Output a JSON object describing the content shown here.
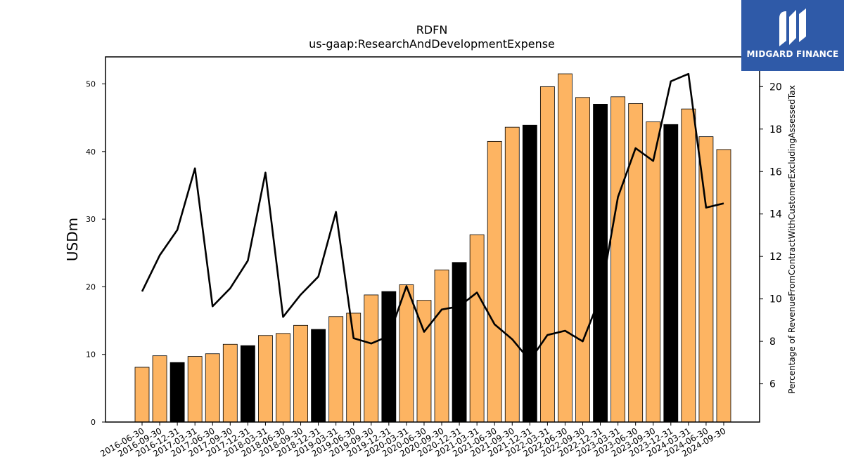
{
  "logo": {
    "text": "MIDGARD FINANCE"
  },
  "chart_data": {
    "type": "bar",
    "title": "RDFN",
    "subtitle": "us-gaap:ResearchAndDevelopmentExpense",
    "ylabel": "USDm",
    "y2label": "Percentage of RevenueFromContractWithCustomerExcludingAssessedTax",
    "ylim": [
      0,
      54
    ],
    "y2lim": [
      4.2,
      21.4
    ],
    "yticks": [
      0,
      10,
      20,
      30,
      40,
      50
    ],
    "y2ticks": [
      6,
      8,
      10,
      12,
      14,
      16,
      18,
      20
    ],
    "categories": [
      "2016-06-30",
      "2016-09-30",
      "2016-12-31",
      "2017-03-31",
      "2017-06-30",
      "2017-09-30",
      "2017-12-31",
      "2018-03-31",
      "2018-06-30",
      "2018-09-30",
      "2018-12-31",
      "2019-03-31",
      "2019-06-30",
      "2019-09-30",
      "2019-12-31",
      "2020-03-31",
      "2020-06-30",
      "2020-09-30",
      "2020-12-31",
      "2021-03-31",
      "2021-06-30",
      "2021-09-30",
      "2021-12-31",
      "2022-03-31",
      "2022-06-30",
      "2022-09-30",
      "2022-12-31",
      "2023-03-31",
      "2023-06-30",
      "2023-09-30",
      "2023-12-31",
      "2024-03-31",
      "2024-06-30",
      "2024-09-30"
    ],
    "series": [
      {
        "type": "bar",
        "values": [
          8.1,
          9.8,
          8.8,
          9.7,
          10.1,
          11.5,
          11.3,
          12.8,
          13.1,
          14.3,
          13.7,
          15.6,
          16.1,
          18.8,
          19.3,
          20.3,
          18.0,
          22.5,
          23.6,
          27.7,
          41.5,
          43.6,
          43.9,
          49.6,
          51.5,
          48.0,
          47.0,
          48.1,
          47.1,
          44.4,
          44.0,
          46.3,
          42.2,
          40.3
        ],
        "highlight": [
          false,
          false,
          true,
          false,
          false,
          false,
          true,
          false,
          false,
          false,
          true,
          false,
          false,
          false,
          true,
          false,
          false,
          false,
          true,
          false,
          false,
          false,
          true,
          false,
          false,
          false,
          true,
          false,
          false,
          false,
          true,
          false,
          false,
          false
        ],
        "color": "#fdb462",
        "highlight_color": "#000000"
      },
      {
        "type": "line",
        "axis": "right",
        "values": [
          10.35,
          12.05,
          13.25,
          16.15,
          9.65,
          10.5,
          11.8,
          15.95,
          9.15,
          10.2,
          11.05,
          14.1,
          8.15,
          7.9,
          8.25,
          10.6,
          8.45,
          9.5,
          9.65,
          10.3,
          8.8,
          8.1,
          7.1,
          8.3,
          8.5,
          8.0,
          10.1,
          14.8,
          17.1,
          16.5,
          20.25,
          20.6,
          14.3,
          14.5
        ],
        "color": "#000000"
      }
    ]
  }
}
